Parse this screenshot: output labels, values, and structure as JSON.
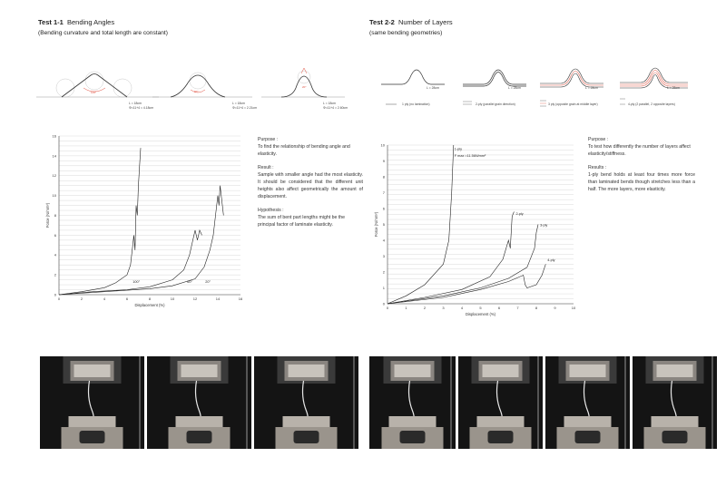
{
  "test1": {
    "title_bold": "Test 1-1",
    "title_rest": "Bending Angles",
    "subtitle": "(Bending curvature and total length are constant)",
    "diagram_labels": [
      [
        "L = 18cm",
        "Φ=11+4 = 4.18cm"
      ],
      [
        "L = 18cm",
        "Φ=11+4 = 2.21cm"
      ],
      [
        "L = 18cm",
        "Φ=11+4 = 2.60cm"
      ]
    ],
    "purpose_head": "Purpose :",
    "purpose": "To find the relationship of bending angle and elasticity.",
    "result_head": "Result :",
    "result": "Sample with smaller angle had the most elasticity. It should be considered that the different unit heights also affect geometrically the amount of displacement.",
    "hyp_head": "Hypothesis :",
    "hyp": "The sum of bent part lengths might be the principal factor of laminate elasticity."
  },
  "test2": {
    "title_bold": "Test 2-2",
    "title_rest": "Number of Layers",
    "subtitle": "(same bending geometries)",
    "diagram_labels": [
      "L = 28cm",
      "L = 28cm",
      "L = 28cm",
      "L = 28cm"
    ],
    "legend": [
      "1 ply (no lamination)",
      "2-ply (parallel grain direction)",
      "3 ply (opposite grain at middle layer)",
      "4-ply (2 parallel, 2 opposite layers)"
    ],
    "purpose_head": "Purpose :",
    "purpose": "To test how differently the number of layers affect elasticity/stiffness.",
    "result_head": "Results :",
    "result": "1-ply bend holds at least four times more force than laminated bends though stretches less than a half. The more layers, more elasticity."
  },
  "chart_data": [
    {
      "type": "line",
      "xlabel": "Displacement (%)",
      "ylabel": "Force (N/mm²)",
      "xlim": [
        0,
        16
      ],
      "ylim": [
        0,
        16
      ],
      "xticks": [
        "0",
        "2",
        "4",
        "6",
        "8",
        "10",
        "12",
        "14",
        "16"
      ],
      "yticks": [
        "0",
        "2",
        "4",
        "6",
        "8",
        "10",
        "12",
        "14",
        "16"
      ],
      "grid": true,
      "series": [
        {
          "name": "100°",
          "points": [
            [
              0,
              0
            ],
            [
              2,
              0.3
            ],
            [
              4,
              0.7
            ],
            [
              5,
              1.2
            ],
            [
              6,
              2
            ],
            [
              6.3,
              3
            ],
            [
              6.5,
              5
            ],
            [
              6.6,
              6
            ],
            [
              6.7,
              4.5
            ],
            [
              6.8,
              9
            ],
            [
              6.9,
              8
            ],
            [
              7,
              11
            ],
            [
              7.1,
              13
            ],
            [
              7.2,
              14.8
            ]
          ]
        },
        {
          "name": "60°",
          "points": [
            [
              0,
              0
            ],
            [
              3,
              0.3
            ],
            [
              6,
              0.5
            ],
            [
              8,
              0.8
            ],
            [
              10,
              1.5
            ],
            [
              11,
              2.5
            ],
            [
              11.5,
              4
            ],
            [
              11.8,
              5.5
            ],
            [
              12,
              6.5
            ],
            [
              12.2,
              5.5
            ],
            [
              12.4,
              6.5
            ],
            [
              12.6,
              6
            ]
          ]
        },
        {
          "name": "20°",
          "points": [
            [
              0,
              0
            ],
            [
              4,
              0.3
            ],
            [
              8,
              0.6
            ],
            [
              10,
              0.9
            ],
            [
              12,
              1.6
            ],
            [
              12.8,
              2.8
            ],
            [
              13.3,
              4.5
            ],
            [
              13.6,
              6
            ],
            [
              13.8,
              8
            ],
            [
              14,
              10
            ],
            [
              14.1,
              9
            ],
            [
              14.2,
              11
            ],
            [
              14.3,
              10
            ],
            [
              14.5,
              8
            ]
          ]
        }
      ],
      "annotations": [
        "100°",
        "60°",
        "20°"
      ]
    },
    {
      "type": "line",
      "xlabel": "Displacement (%)",
      "ylabel": "Force (N/mm²)",
      "xlim": [
        0,
        10
      ],
      "ylim": [
        0,
        10
      ],
      "xticks": [
        "0",
        "1",
        "2",
        "3",
        "4",
        "5",
        "6",
        "7",
        "8",
        "9",
        "10"
      ],
      "yticks": [
        "0",
        "1",
        "2",
        "3",
        "4",
        "5",
        "6",
        "7",
        "8",
        "9",
        "10"
      ],
      "grid": true,
      "series": [
        {
          "name": "1-ply",
          "points": [
            [
              0,
              0
            ],
            [
              1,
              0.5
            ],
            [
              2,
              1.2
            ],
            [
              3,
              2.5
            ],
            [
              3.3,
              4
            ],
            [
              3.45,
              7
            ],
            [
              3.55,
              10
            ]
          ]
        },
        {
          "name": "2-ply",
          "points": [
            [
              0,
              0
            ],
            [
              2,
              0.4
            ],
            [
              4,
              0.9
            ],
            [
              5.5,
              1.7
            ],
            [
              6.2,
              2.8
            ],
            [
              6.5,
              4
            ],
            [
              6.6,
              3.5
            ],
            [
              6.7,
              5.5
            ],
            [
              6.8,
              5.8
            ]
          ]
        },
        {
          "name": "3-ply",
          "points": [
            [
              0,
              0
            ],
            [
              3,
              0.5
            ],
            [
              5,
              1
            ],
            [
              6.5,
              1.6
            ],
            [
              7.5,
              2.3
            ],
            [
              7.9,
              3.5
            ],
            [
              8,
              4.5
            ],
            [
              8.1,
              5
            ]
          ]
        },
        {
          "name": "4-ply",
          "points": [
            [
              0,
              0
            ],
            [
              3,
              0.4
            ],
            [
              5,
              0.9
            ],
            [
              6.5,
              1.4
            ],
            [
              7.3,
              1.8
            ],
            [
              7.4,
              1.2
            ],
            [
              7.5,
              1.0
            ],
            [
              8,
              1.2
            ],
            [
              8.3,
              1.8
            ],
            [
              8.5,
              2.5
            ]
          ]
        }
      ],
      "annotations": [
        "1-ply",
        "F max =11.56N/mm²",
        "2-ply",
        "3-ply",
        "4-ply"
      ]
    }
  ]
}
